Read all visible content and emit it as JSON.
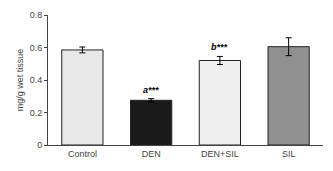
{
  "chart_data": {
    "type": "bar",
    "categories": [
      "Control",
      "DEN",
      "DEN+SIL",
      "SIL"
    ],
    "values": [
      0.585,
      0.275,
      0.52,
      0.605
    ],
    "errors": [
      0.018,
      0.01,
      0.025,
      0.055
    ],
    "colors": [
      "#e8e8e8",
      "#1a1a1a",
      "#f0f0f0",
      "#909090"
    ],
    "annotations": [
      {
        "category": "DEN",
        "text": "a***"
      },
      {
        "category": "DEN+SIL",
        "text": "b***"
      }
    ],
    "ylabel": "mg/g wet tissue",
    "ylim": [
      0,
      0.8
    ],
    "yticks": [
      0,
      0.2,
      0.4,
      0.6,
      0.8
    ],
    "grid": false
  }
}
